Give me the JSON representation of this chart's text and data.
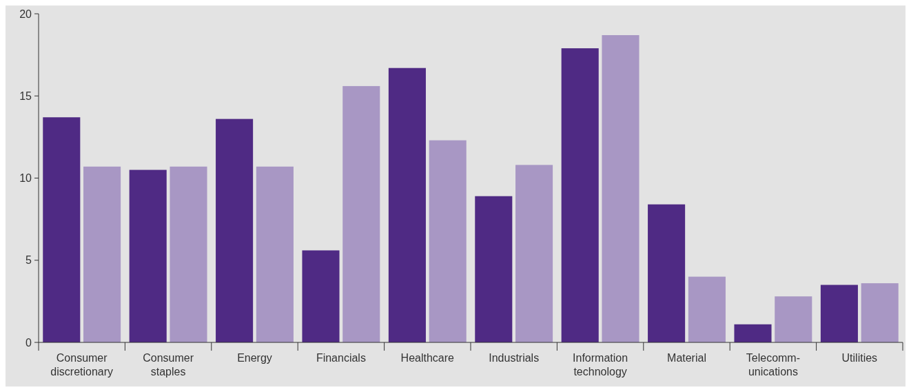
{
  "chart_data": {
    "type": "bar",
    "categories": [
      "Consumer discretionary",
      "Consumer staples",
      "Energy",
      "Financials",
      "Healthcare",
      "Industrials",
      "Information technology",
      "Material",
      "Telecomm-unications",
      "Utilities"
    ],
    "series": [
      {
        "color": "#4f2a84",
        "values": [
          13.7,
          10.5,
          13.6,
          5.6,
          16.7,
          8.9,
          17.9,
          8.4,
          1.1,
          3.5
        ]
      },
      {
        "color": "#a897c4",
        "values": [
          10.7,
          10.7,
          10.7,
          15.6,
          12.3,
          10.8,
          18.7,
          4.0,
          2.8,
          3.6
        ]
      }
    ],
    "ylim": [
      0,
      20
    ],
    "yticks": [
      0,
      5,
      10,
      15,
      20
    ],
    "grid": false
  }
}
